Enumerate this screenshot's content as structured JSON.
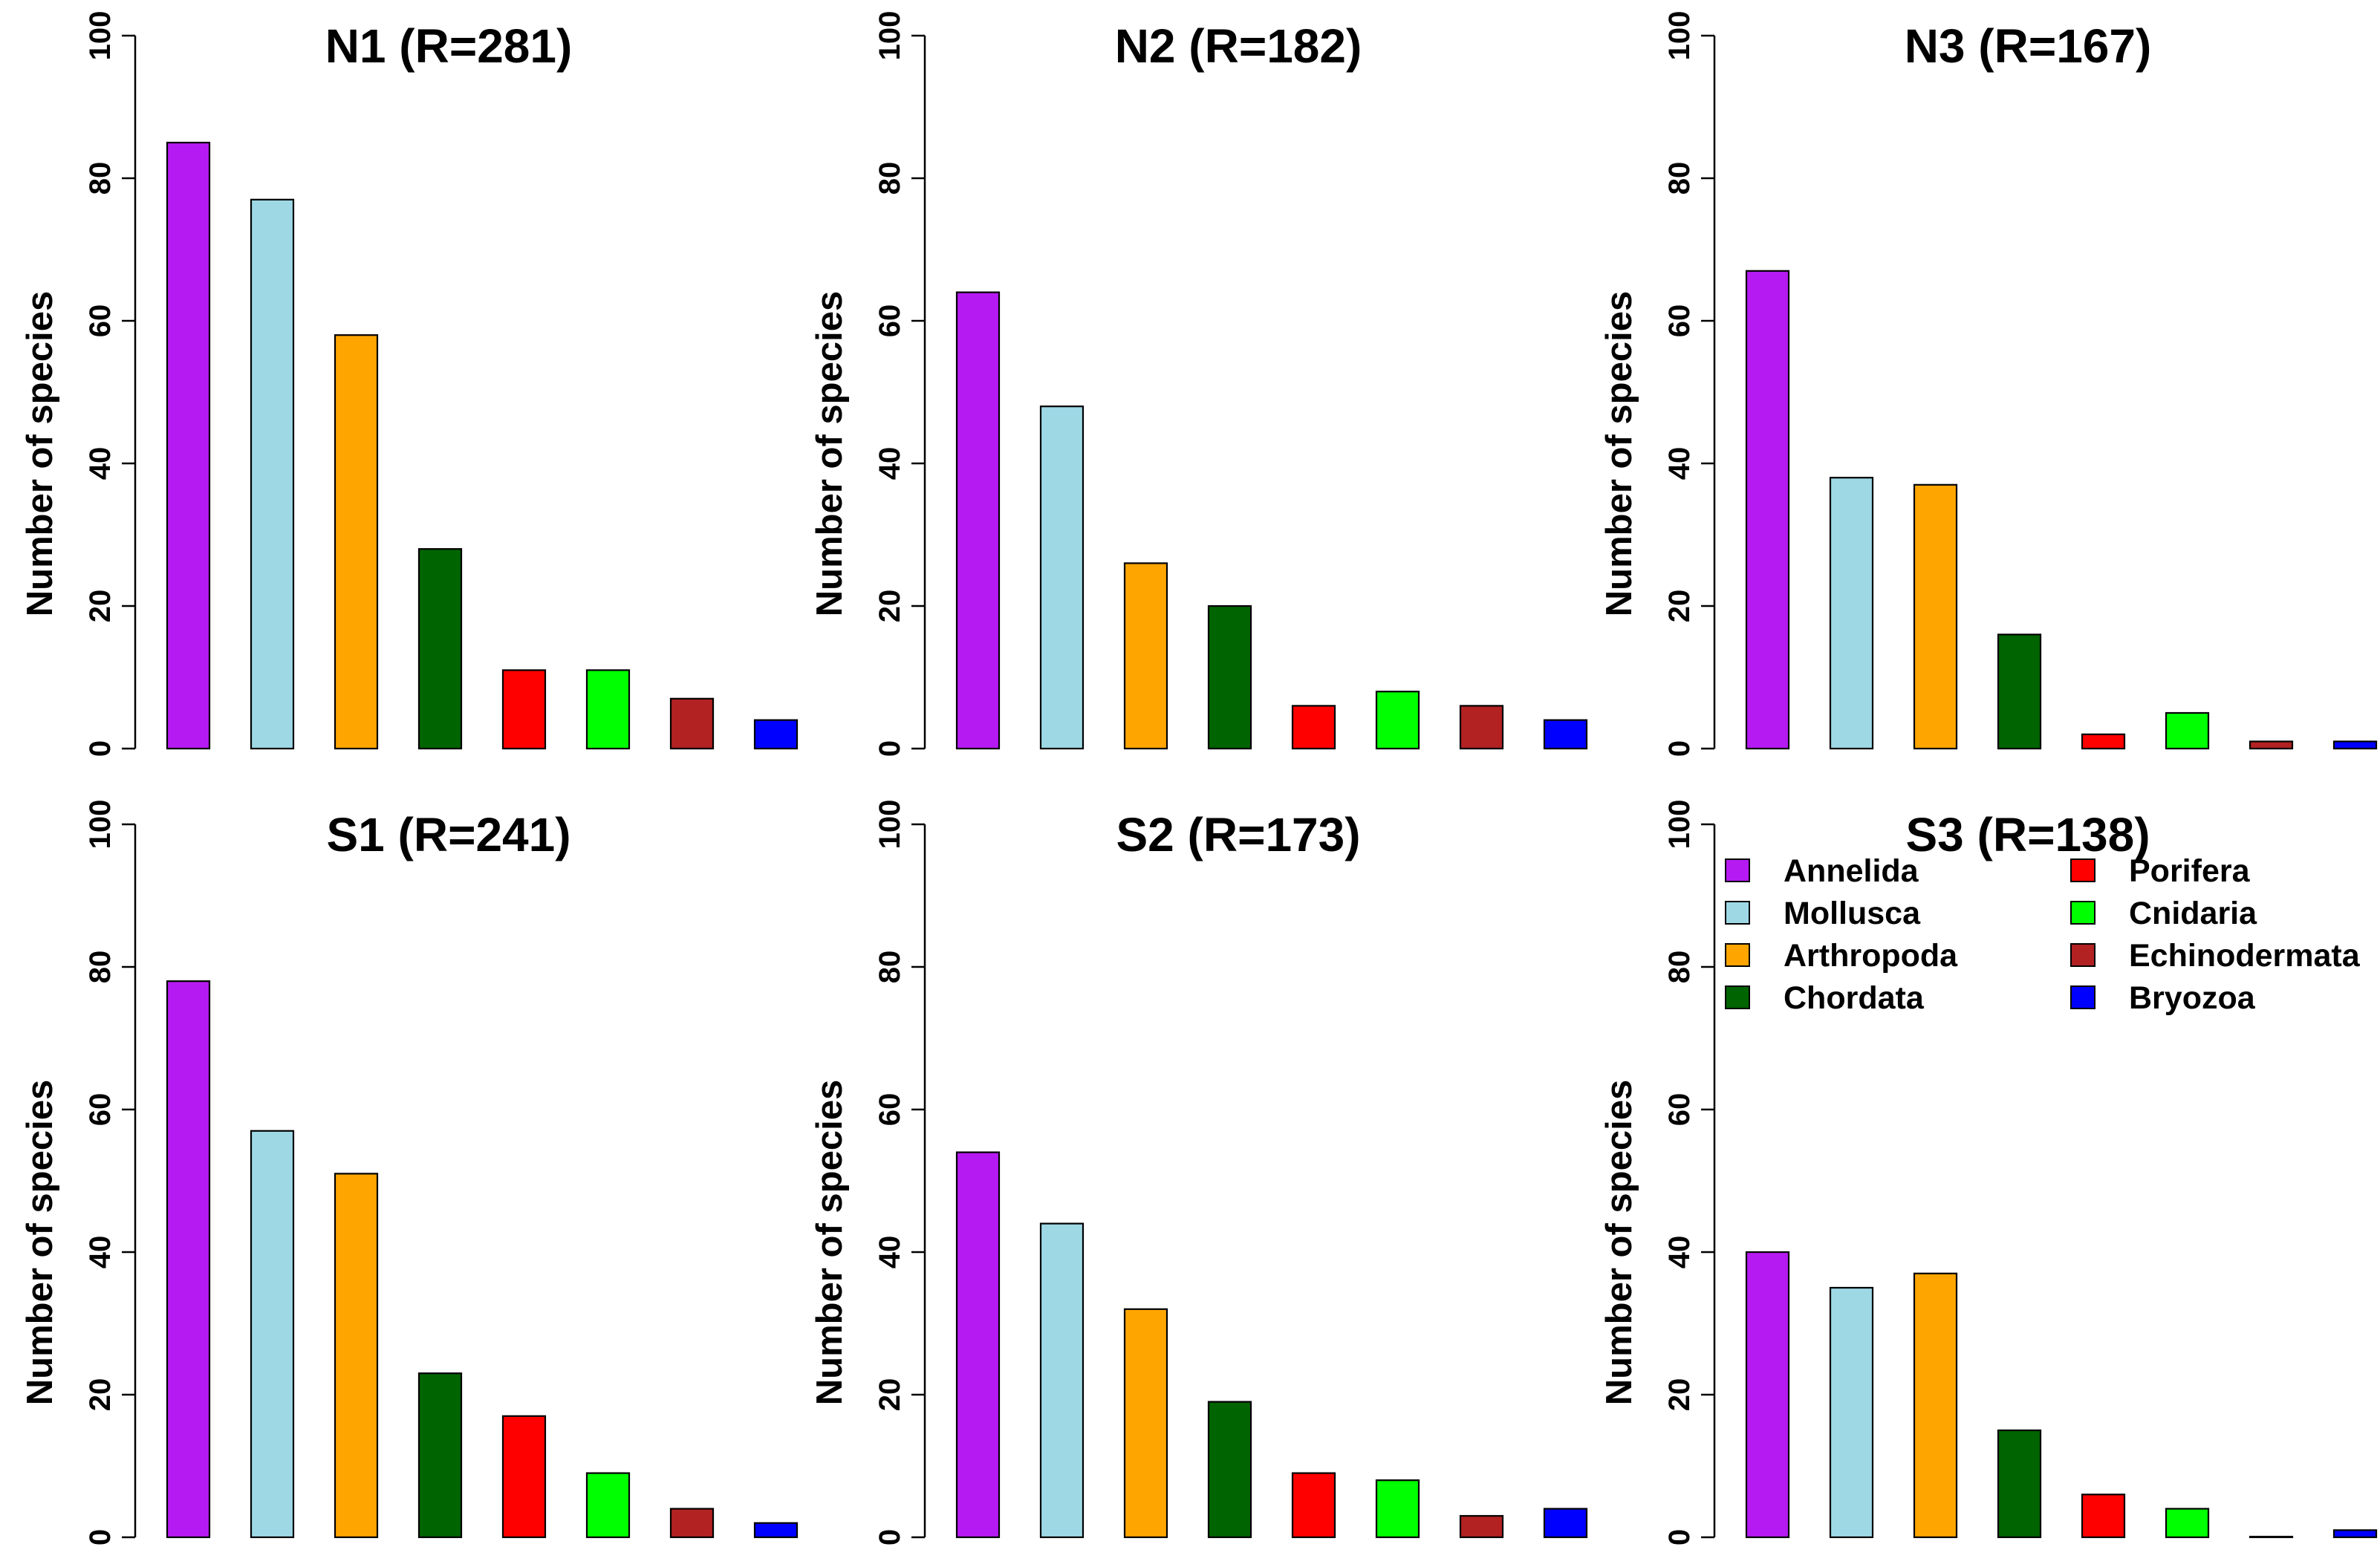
{
  "chart_data": [
    {
      "type": "bar",
      "title": "N1 (R=281)",
      "ylabel": "Number of species",
      "xlabel": "",
      "ylim": [
        0,
        100
      ],
      "yticks": [
        0,
        20,
        40,
        60,
        80,
        100
      ],
      "categories": [
        "Annelida",
        "Mollusca",
        "Arthropoda",
        "Chordata",
        "Porifera",
        "Cnidaria",
        "Echinodermata",
        "Bryozoa"
      ],
      "values": [
        85,
        77,
        58,
        28,
        11,
        11,
        7,
        4
      ]
    },
    {
      "type": "bar",
      "title": "N2 (R=182)",
      "ylabel": "Number of species",
      "xlabel": "",
      "ylim": [
        0,
        100
      ],
      "yticks": [
        0,
        20,
        40,
        60,
        80,
        100
      ],
      "categories": [
        "Annelida",
        "Mollusca",
        "Arthropoda",
        "Chordata",
        "Porifera",
        "Cnidaria",
        "Echinodermata",
        "Bryozoa"
      ],
      "values": [
        64,
        48,
        26,
        20,
        6,
        8,
        6,
        4
      ]
    },
    {
      "type": "bar",
      "title": "N3 (R=167)",
      "ylabel": "Number of species",
      "xlabel": "",
      "ylim": [
        0,
        100
      ],
      "yticks": [
        0,
        20,
        40,
        60,
        80,
        100
      ],
      "categories": [
        "Annelida",
        "Mollusca",
        "Arthropoda",
        "Chordata",
        "Porifera",
        "Cnidaria",
        "Echinodermata",
        "Bryozoa"
      ],
      "values": [
        67,
        38,
        37,
        16,
        2,
        5,
        1,
        1
      ]
    },
    {
      "type": "bar",
      "title": "S1 (R=241)",
      "ylabel": "Number of species",
      "xlabel": "",
      "ylim": [
        0,
        100
      ],
      "yticks": [
        0,
        20,
        40,
        60,
        80,
        100
      ],
      "categories": [
        "Annelida",
        "Mollusca",
        "Arthropoda",
        "Chordata",
        "Porifera",
        "Cnidaria",
        "Echinodermata",
        "Bryozoa"
      ],
      "values": [
        78,
        57,
        51,
        23,
        17,
        9,
        4,
        2
      ]
    },
    {
      "type": "bar",
      "title": "S2 (R=173)",
      "ylabel": "Number of species",
      "xlabel": "",
      "ylim": [
        0,
        100
      ],
      "yticks": [
        0,
        20,
        40,
        60,
        80,
        100
      ],
      "categories": [
        "Annelida",
        "Mollusca",
        "Arthropoda",
        "Chordata",
        "Porifera",
        "Cnidaria",
        "Echinodermata",
        "Bryozoa"
      ],
      "values": [
        54,
        44,
        32,
        19,
        9,
        8,
        3,
        4
      ]
    },
    {
      "type": "bar",
      "title": "S3 (R=138)",
      "ylabel": "Number of species",
      "xlabel": "",
      "ylim": [
        0,
        100
      ],
      "yticks": [
        0,
        20,
        40,
        60,
        80,
        100
      ],
      "categories": [
        "Annelida",
        "Mollusca",
        "Arthropoda",
        "Chordata",
        "Porifera",
        "Cnidaria",
        "Echinodermata",
        "Bryozoa"
      ],
      "values": [
        40,
        35,
        37,
        15,
        6,
        4,
        0,
        1
      ],
      "legend": "top"
    }
  ],
  "colors": {
    "Annelida": "#b61af2",
    "Mollusca": "#9ed8e5",
    "Arthropoda": "#ffa500",
    "Chordata": "#006400",
    "Porifera": "#ff0000",
    "Cnidaria": "#00ff00",
    "Echinodermata": "#b22222",
    "Bryozoa": "#0000ff"
  },
  "legend": {
    "panel": 5,
    "columns": [
      [
        "Annelida",
        "Mollusca",
        "Arthropoda",
        "Chordata"
      ],
      [
        "Porifera",
        "Cnidaria",
        "Echinodermata",
        "Bryozoa"
      ]
    ]
  }
}
